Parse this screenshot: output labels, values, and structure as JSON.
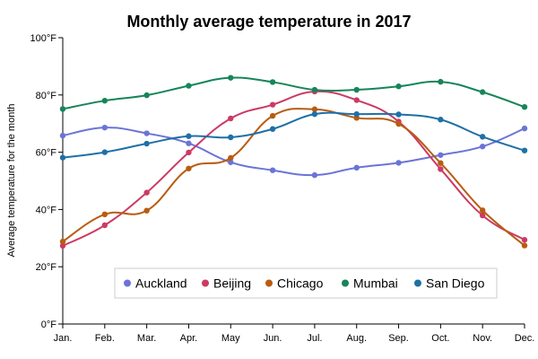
{
  "chart_data": {
    "type": "line",
    "title": "Monthly average temperature in 2017",
    "ylabel": "Average temperature for the month",
    "xlabel": "",
    "categories": [
      "Jan.",
      "Feb.",
      "Mar.",
      "Apr.",
      "May",
      "Jun.",
      "Jul.",
      "Aug.",
      "Sep.",
      "Oct.",
      "Nov.",
      "Dec."
    ],
    "y_ticks": [
      0,
      20,
      40,
      60,
      80,
      100
    ],
    "y_tick_labels": [
      "0°F",
      "20°F",
      "40°F",
      "60°F",
      "80°F",
      "100°F"
    ],
    "ylim": [
      0,
      100
    ],
    "grid": false,
    "legend_position": "bottom-center",
    "series": [
      {
        "name": "Auckland",
        "color": "#6b74d6",
        "values": [
          65.8,
          68.6,
          66.6,
          63.1,
          56.5,
          53.7,
          52.0,
          54.6,
          56.3,
          59.0,
          62.0,
          68.3
        ]
      },
      {
        "name": "Beijing",
        "color": "#cc3a64",
        "values": [
          27.3,
          34.5,
          45.9,
          59.9,
          71.8,
          76.6,
          81.2,
          78.2,
          70.7,
          54.1,
          37.9,
          29.4
        ]
      },
      {
        "name": "Chicago",
        "color": "#b85c10",
        "values": [
          28.8,
          38.3,
          39.6,
          54.3,
          58.0,
          72.7,
          75.0,
          72.0,
          69.9,
          56.2,
          39.7,
          27.4
        ]
      },
      {
        "name": "Mumbai",
        "color": "#16855a",
        "values": [
          75.1,
          78.0,
          79.9,
          83.2,
          86.0,
          84.5,
          81.8,
          81.8,
          83.0,
          84.6,
          81.0,
          75.8
        ]
      },
      {
        "name": "San Diego",
        "color": "#1f70a6",
        "values": [
          58.1,
          60.0,
          63.0,
          65.6,
          65.2,
          68.1,
          73.3,
          73.3,
          73.2,
          71.4,
          65.4,
          60.6
        ]
      }
    ]
  }
}
